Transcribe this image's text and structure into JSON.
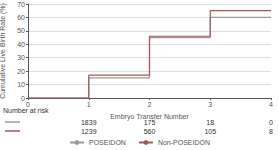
{
  "chart_data": {
    "type": "line",
    "xlabel": "Embryo Transfer Number",
    "ylabel": "Cumulative Live Birth Rate (%)",
    "x": [
      0,
      1,
      1,
      2,
      2,
      3,
      3,
      4
    ],
    "series": [
      {
        "name": "POSEIDON",
        "color": "#a09898",
        "values": [
          0,
          0,
          15,
          15,
          45,
          45,
          60,
          60
        ]
      },
      {
        "name": "Non-POSEIDON",
        "color": "#a05858",
        "values": [
          0,
          0,
          17,
          17,
          46,
          46,
          65,
          65
        ]
      }
    ],
    "xlim": [
      0,
      4
    ],
    "xticks": [
      0,
      1,
      2,
      3,
      4
    ],
    "ylim": [
      0,
      70
    ],
    "yticks": [
      0,
      10,
      20,
      30,
      40,
      50,
      60,
      70
    ],
    "grid": true,
    "legend": "bottom",
    "risk_table": {
      "label": "Number at risk",
      "x": [
        1,
        2,
        3,
        4
      ],
      "rows": [
        {
          "color": "#a09898",
          "values": [
            1839,
            175,
            18,
            0
          ]
        },
        {
          "color": "#a05858",
          "values": [
            1239,
            560,
            105,
            8
          ]
        }
      ]
    }
  }
}
